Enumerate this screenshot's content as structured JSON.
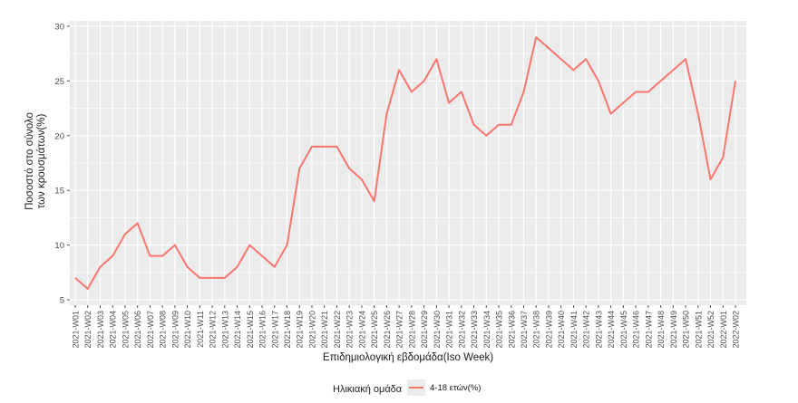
{
  "chart_data": {
    "type": "line",
    "title": "",
    "xlabel": "Επιδημιολογική εβδομάδα(Iso Week)",
    "ylabel_line1": "Ποσοστό στο σύνολο",
    "ylabel_line2": "των κρουσμάτων(%)",
    "ylim": [
      5,
      30
    ],
    "yticks": [
      5,
      10,
      15,
      20,
      25,
      30
    ],
    "grid": true,
    "legend_title": "Ηλικιακή ομάδα",
    "categories": [
      "2021-W01",
      "2021-W02",
      "2021-W03",
      "2021-W04",
      "2021-W05",
      "2021-W06",
      "2021-W07",
      "2021-W08",
      "2021-W09",
      "2021-W10",
      "2021-W11",
      "2021-W12",
      "2021-W13",
      "2021-W14",
      "2021-W15",
      "2021-W16",
      "2021-W17",
      "2021-W18",
      "2021-W19",
      "2021-W20",
      "2021-W21",
      "2021-W22",
      "2021-W23",
      "2021-W24",
      "2021-W25",
      "2021-W26",
      "2021-W27",
      "2021-W28",
      "2021-W29",
      "2021-W30",
      "2021-W31",
      "2021-W32",
      "2021-W33",
      "2021-W34",
      "2021-W35",
      "2021-W36",
      "2021-W37",
      "2021-W38",
      "2021-W39",
      "2021-W40",
      "2021-W41",
      "2021-W42",
      "2021-W43",
      "2021-W44",
      "2021-W45",
      "2021-W46",
      "2021-W47",
      "2021-W48",
      "2021-W49",
      "2021-W50",
      "2021-W51",
      "2021-W52",
      "2022-W01",
      "2022-W02"
    ],
    "series": [
      {
        "name": "4-18 ετών(%)",
        "color": "#f8766d",
        "values": [
          7,
          6,
          8,
          9,
          11,
          12,
          9,
          9,
          10,
          8,
          7,
          7,
          7,
          8,
          10,
          9,
          8,
          10,
          17,
          19,
          19,
          19,
          17,
          16,
          14,
          22,
          26,
          24,
          25,
          27,
          23,
          24,
          21,
          20,
          21,
          21,
          24,
          29,
          28,
          27,
          26,
          27,
          25,
          22,
          23,
          24,
          24,
          25,
          26,
          27,
          22,
          16,
          18,
          25
        ]
      }
    ],
    "panel_background": "#ebebeb",
    "gridline_color": "#ffffff"
  }
}
